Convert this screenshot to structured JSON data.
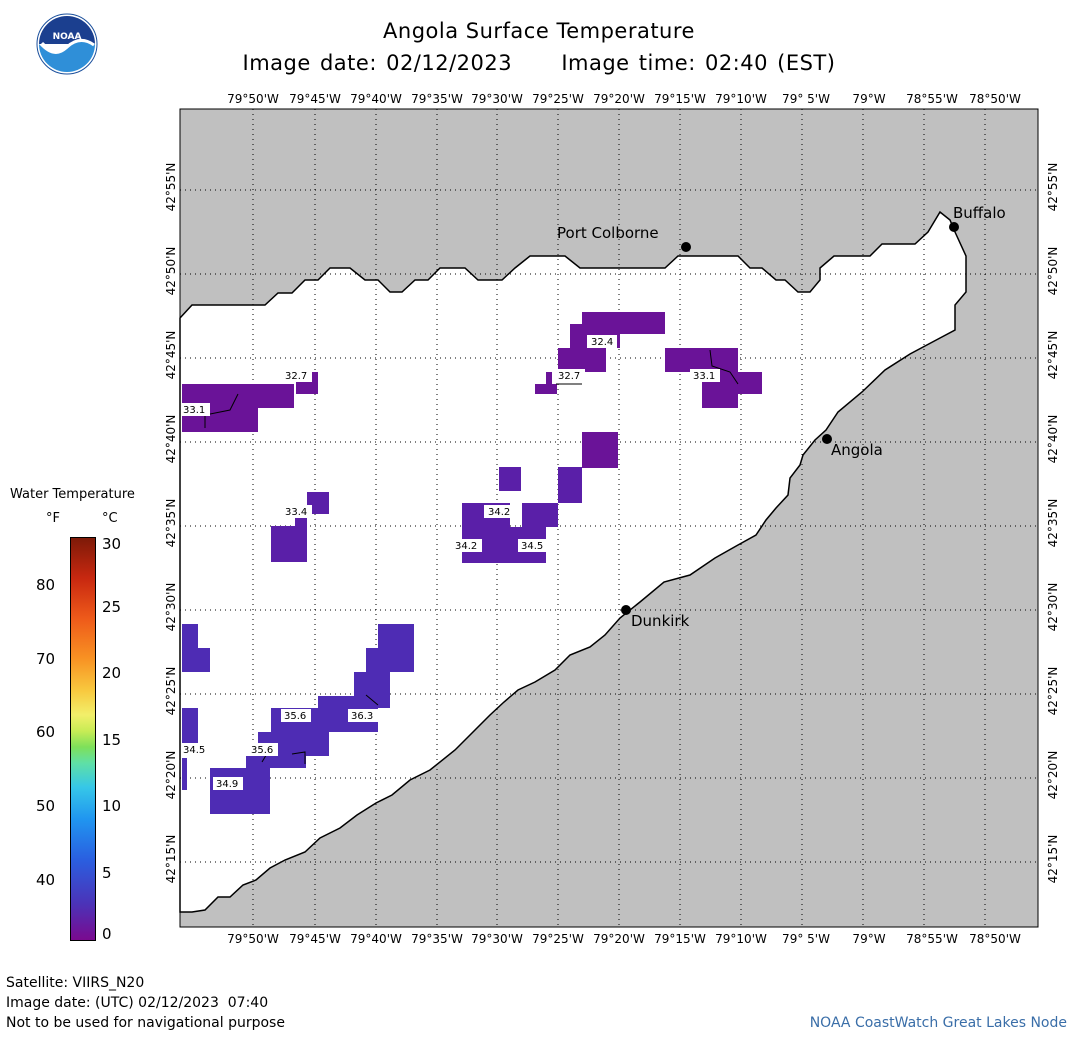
{
  "header": {
    "title": "Angola Surface Temperature",
    "date_label": "Image date: 02/12/2023",
    "time_label": "Image time: 02:40 (EST)"
  },
  "logo": {
    "icon": "noaa-logo-icon",
    "text": "NOAA"
  },
  "map": {
    "x_ticks": [
      "79°50'W",
      "79°45'W",
      "79°40'W",
      "79°35'W",
      "79°30'W",
      "79°25'W",
      "79°20'W",
      "79°15'W",
      "79°10'W",
      "79° 5'W",
      "79°W",
      "78°55'W",
      "78°50'W"
    ],
    "y_ticks": [
      "42°55'N",
      "42°50'N",
      "42°45'N",
      "42°40'N",
      "42°35'N",
      "42°30'N",
      "42°25'N",
      "42°20'N",
      "42°15'N"
    ],
    "cities": [
      "Port Colborne",
      "Buffalo",
      "Angola",
      "Dunkirk"
    ],
    "water_color": "#ffffff",
    "land_color": "#c0c0c0",
    "contour_labels": [
      "32.7",
      "33.1",
      "32.4",
      "32.7",
      "33.1",
      "33.4",
      "34.2",
      "34.2",
      "34.5",
      "35.6",
      "36.3",
      "35.6",
      "34.5",
      "34.9"
    ]
  },
  "legend": {
    "title": "Water Temperature",
    "unit_f": "°F",
    "unit_c": "°C",
    "f_labels": [
      "80",
      "70",
      "60",
      "50",
      "40"
    ],
    "c_labels": [
      "30",
      "25",
      "20",
      "15",
      "10",
      "5",
      "0"
    ]
  },
  "footer": {
    "satellite": "Satellite: VIIRS_N20",
    "utc_date": "Image date: (UTC) 02/12/2023  07:40",
    "disclaimer": "Not to be used for navigational purpose",
    "credit": "NOAA CoastWatch Great Lakes Node"
  }
}
